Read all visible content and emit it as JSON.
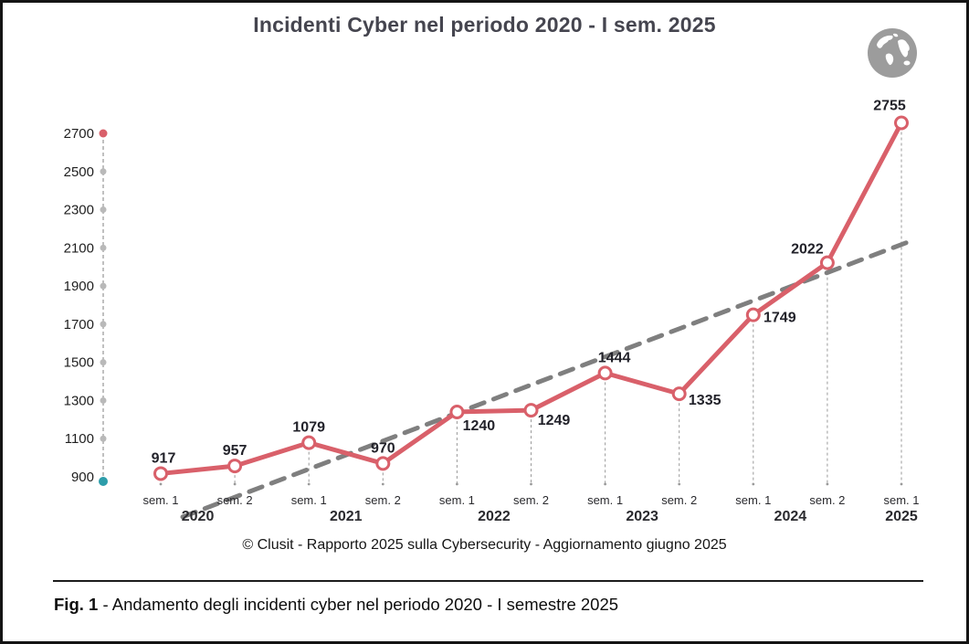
{
  "page": {
    "title": "Incidenti Cyber nel periodo 2020 - I sem. 2025",
    "source_credit": "© Clusit - Rapporto 2025 sulla Cybersecurity - Aggiornamento giugno 2025",
    "caption_prefix": "Fig. 1",
    "caption_text": " - Andamento degli incidenti cyber nel periodo 2020 - I semestre 2025"
  },
  "icons": {
    "globe": "globe-icon"
  },
  "colors": {
    "series": "#d9606a",
    "marker_fill": "#ffffff",
    "trend": "#7f7f7f",
    "dropline": "#9a9a9a",
    "axis_line": "#b0b0b0",
    "axis_dot_gray": "#b9b9b9",
    "axis_dot_top": "#d9606a",
    "axis_dot_bottom": "#2d9daa",
    "value_label": "#22222a",
    "tick_label": "#1f1f1f",
    "x_label": "#2a2a2e"
  },
  "chart_data": {
    "type": "line",
    "title": "Incidenti Cyber nel periodo 2020 - I sem. 2025",
    "categories": [
      "sem. 1",
      "sem. 2",
      "sem. 1",
      "sem. 2",
      "sem. 1",
      "sem. 2",
      "sem. 1",
      "sem. 2",
      "sem. 1",
      "sem. 2",
      "sem. 1"
    ],
    "year_groups": [
      {
        "label": "2020",
        "from": 0,
        "to": 1
      },
      {
        "label": "2021",
        "from": 2,
        "to": 3
      },
      {
        "label": "2022",
        "from": 4,
        "to": 5
      },
      {
        "label": "2023",
        "from": 6,
        "to": 7
      },
      {
        "label": "2024",
        "from": 8,
        "to": 9
      },
      {
        "label": "2025",
        "from": 10,
        "to": 10
      }
    ],
    "series": [
      {
        "name": "Incidenti cyber",
        "values": [
          917,
          957,
          1079,
          970,
          1240,
          1249,
          1444,
          1335,
          1749,
          2022,
          2755
        ]
      }
    ],
    "trend_line": {
      "style": "dashed",
      "start_value": 690,
      "end_value": 2130
    },
    "y_ticks": [
      900,
      1100,
      1300,
      1500,
      1700,
      1900,
      2100,
      2300,
      2500,
      2700
    ],
    "ylim": [
      900,
      2700
    ],
    "grid": false,
    "legend": "none",
    "source": "© Clusit - Rapporto 2025 sulla Cybersecurity - Aggiornamento giugno 2025"
  }
}
